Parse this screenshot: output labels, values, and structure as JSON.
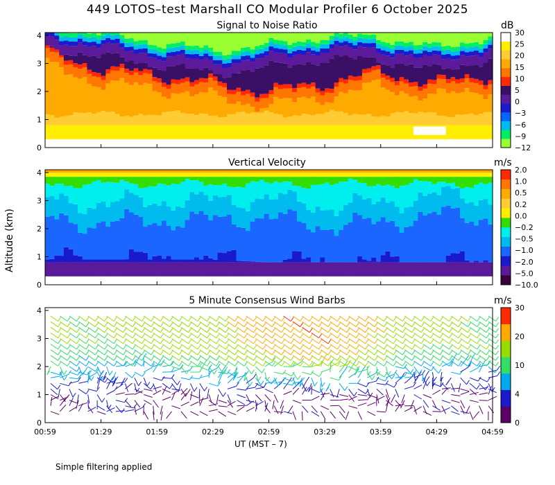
{
  "title": "449 LOTOS–test Marshall CO Modular Profiler  6 October 2025",
  "footnote": "Simple filtering applied",
  "axis": {
    "ylabel": "Altitude (km)",
    "xlabel": "UT  (MST – 7)",
    "xticks": [
      "00:59",
      "01:29",
      "01:59",
      "02:29",
      "02:59",
      "03:29",
      "03:59",
      "04:29",
      "04:59"
    ],
    "yticks": [
      "0",
      "1",
      "2",
      "3",
      "4"
    ]
  },
  "colors": {
    "snr": [
      "#99ff33",
      "#00ee66",
      "#00bbee",
      "#0066ff",
      "#1a1acc",
      "#5a1a99",
      "#3a0f66",
      "#ff2a00",
      "#ff7700",
      "#ffaa00",
      "#ffcc33",
      "#ffee00",
      "#ffffff"
    ],
    "velocity": [
      "#3a003a",
      "#5a1a99",
      "#1a1acc",
      "#1a66ff",
      "#00bbee",
      "#00eeee",
      "#33dd00",
      "#ffee00",
      "#ffcc33",
      "#ffaa00",
      "#ff7700",
      "#ff2a00"
    ],
    "wind": [
      "#5a0066",
      "#1a1acc",
      "#00aaee",
      "#33dd66",
      "#99dd00",
      "#ffaa00",
      "#ff2a00"
    ]
  },
  "chart_data": [
    {
      "type": "heatmap",
      "title": "Signal to Noise Ratio",
      "units": "dB",
      "colorbar_labels": [
        "30",
        "25",
        "20",
        "15",
        "10",
        "5",
        "0",
        "−3",
        "−6",
        "−9",
        "−12"
      ],
      "ylim": [
        0,
        4.1
      ],
      "x_range": [
        "00:59",
        "04:59"
      ],
      "x": [
        "00:59",
        "01:29",
        "01:59",
        "02:29",
        "02:59",
        "03:29",
        "03:59",
        "04:29",
        "04:59"
      ],
      "series": [
        {
          "name": "snr_10dB_contour_km",
          "values": [
            3.4,
            2.8,
            2.6,
            2.3,
            2.0,
            2.3,
            2.7,
            2.3,
            2.6
          ]
        },
        {
          "name": "snr_0dB_contour_km",
          "values": [
            3.9,
            3.6,
            3.3,
            3.0,
            3.2,
            3.5,
            3.5,
            3.1,
            3.5
          ]
        }
      ]
    },
    {
      "type": "heatmap",
      "title": "Vertical Velocity",
      "units": "m/s",
      "colorbar_labels": [
        "2.0",
        "1.0",
        "0.5",
        "0.2",
        "0.0",
        "−0.2",
        "−0.5",
        "−1.0",
        "−2.0",
        "−5.0",
        "−10.0"
      ],
      "ylim": [
        0,
        4.1
      ],
      "x_range": [
        "00:59",
        "04:59"
      ],
      "x": [
        "00:59",
        "01:29",
        "01:59",
        "02:29",
        "02:59",
        "03:29",
        "03:59",
        "04:29",
        "04:59"
      ],
      "series": [
        {
          "name": "below_minus2_top_km",
          "values": [
            0.9,
            0.9,
            0.9,
            0.9,
            0.8,
            0.8,
            0.8,
            0.8,
            0.8
          ]
        },
        {
          "name": "minus1_to_minus0.5_top_km",
          "values": [
            2.6,
            2.5,
            2.6,
            2.6,
            2.7,
            2.4,
            2.5,
            2.8,
            2.7
          ]
        }
      ]
    },
    {
      "type": "scatter",
      "title": "5 Minute Consensus Wind Barbs",
      "units": "m/s",
      "colorbar_labels": [
        "30",
        "20",
        "10",
        "4",
        "0"
      ],
      "ylim": [
        0,
        4.1
      ],
      "x_range": [
        "00:59",
        "04:59"
      ],
      "x": [
        "00:59",
        "01:29",
        "01:59",
        "02:29",
        "02:59",
        "03:29",
        "03:59",
        "04:29",
        "04:59"
      ],
      "series": [
        {
          "name": "wind_speed_at_3km",
          "values": [
            14,
            13,
            15,
            17,
            24,
            24,
            18,
            14,
            12
          ]
        },
        {
          "name": "wind_speed_at_1km",
          "values": [
            2,
            3,
            2,
            2,
            2,
            3,
            1,
            2,
            3
          ]
        }
      ]
    }
  ]
}
